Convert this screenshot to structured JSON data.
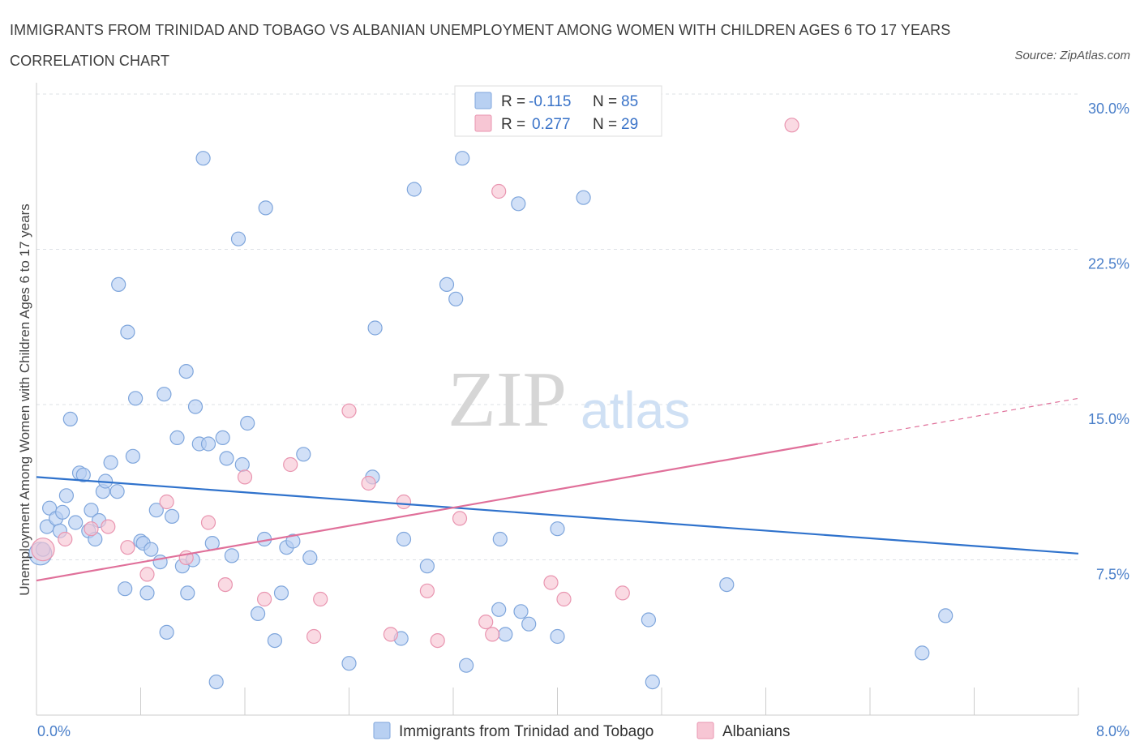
{
  "title": "IMMIGRANTS FROM TRINIDAD AND TOBAGO VS ALBANIAN UNEMPLOYMENT AMONG WOMEN WITH CHILDREN AGES 6 TO 17 YEARS CORRELATION CHART",
  "source": "Source: ZipAtlas.com",
  "watermark": {
    "zip": "ZIP",
    "atlas": "atlas"
  },
  "colors": {
    "blue_fill": "#b8d0f2",
    "blue_stroke": "#7fa6dc",
    "blue_line": "#2f72cc",
    "pink_fill": "#f7c6d4",
    "pink_stroke": "#e995b0",
    "pink_line": "#e0709a",
    "axis_label": "#4a7fc9",
    "grid": "#dde1e6"
  },
  "legend_top": {
    "rows": [
      {
        "r_label": "R =",
        "r_value": "-0.115",
        "n_label": "N =",
        "n_value": "85"
      },
      {
        "r_label": "R =",
        "r_value": "0.277",
        "n_label": "N =",
        "n_value": "29"
      }
    ]
  },
  "legend_bottom": [
    "Immigrants from Trinidad and Tobago",
    "Albanians"
  ],
  "chart_data": {
    "type": "scatter",
    "title": "IMMIGRANTS FROM TRINIDAD AND TOBAGO VS ALBANIAN UNEMPLOYMENT AMONG WOMEN WITH CHILDREN AGES 6 TO 17 YEARS CORRELATION CHART",
    "xlabel": "",
    "ylabel": "Unemployment Among Women with Children Ages 6 to 17 years",
    "xlim": [
      0,
      8
    ],
    "ylim": [
      0,
      30
    ],
    "x_ticks": [
      "0.0%",
      "8.0%"
    ],
    "y_ticks": [
      {
        "value": 7.5,
        "label": "7.5%"
      },
      {
        "value": 15,
        "label": "15.0%"
      },
      {
        "value": 22.5,
        "label": "22.5%"
      },
      {
        "value": 30,
        "label": "30.0%"
      }
    ],
    "grid": true,
    "legend_position": "top-center",
    "series": [
      {
        "name": "Immigrants from Trinidad and Tobago",
        "color": "#b8d0f2",
        "trend": {
          "x": [
            0,
            8
          ],
          "y": [
            11.5,
            7.8
          ],
          "dashed_from": null
        },
        "points": [
          [
            0.03,
            7.8
          ],
          [
            0.05,
            8.0
          ],
          [
            0.08,
            9.1
          ],
          [
            0.1,
            10.0
          ],
          [
            0.15,
            9.5
          ],
          [
            0.18,
            8.9
          ],
          [
            0.2,
            9.8
          ],
          [
            0.23,
            10.6
          ],
          [
            0.26,
            14.3
          ],
          [
            0.3,
            9.3
          ],
          [
            0.33,
            11.7
          ],
          [
            0.36,
            11.6
          ],
          [
            0.4,
            8.9
          ],
          [
            0.42,
            9.9
          ],
          [
            0.45,
            8.5
          ],
          [
            0.48,
            9.4
          ],
          [
            0.51,
            10.8
          ],
          [
            0.53,
            11.3
          ],
          [
            0.57,
            12.2
          ],
          [
            0.62,
            10.8
          ],
          [
            0.63,
            20.8
          ],
          [
            0.68,
            6.1
          ],
          [
            0.7,
            18.5
          ],
          [
            0.74,
            12.5
          ],
          [
            0.76,
            15.3
          ],
          [
            0.8,
            8.4
          ],
          [
            0.82,
            8.3
          ],
          [
            0.85,
            5.9
          ],
          [
            0.88,
            8.0
          ],
          [
            0.92,
            9.9
          ],
          [
            0.95,
            7.4
          ],
          [
            0.98,
            15.5
          ],
          [
            1.0,
            4.0
          ],
          [
            1.04,
            9.6
          ],
          [
            1.08,
            13.4
          ],
          [
            1.12,
            7.2
          ],
          [
            1.15,
            16.6
          ],
          [
            1.16,
            5.9
          ],
          [
            1.2,
            7.5
          ],
          [
            1.22,
            14.9
          ],
          [
            1.25,
            13.1
          ],
          [
            1.28,
            26.9
          ],
          [
            1.32,
            13.1
          ],
          [
            1.35,
            8.3
          ],
          [
            1.38,
            1.6
          ],
          [
            1.43,
            13.4
          ],
          [
            1.46,
            12.4
          ],
          [
            1.5,
            7.7
          ],
          [
            1.55,
            23.0
          ],
          [
            1.58,
            12.1
          ],
          [
            1.62,
            14.1
          ],
          [
            1.7,
            4.9
          ],
          [
            1.75,
            8.5
          ],
          [
            1.76,
            24.5
          ],
          [
            1.83,
            3.6
          ],
          [
            1.88,
            5.9
          ],
          [
            1.92,
            8.1
          ],
          [
            1.97,
            8.4
          ],
          [
            2.05,
            12.6
          ],
          [
            2.1,
            7.6
          ],
          [
            2.4,
            2.5
          ],
          [
            2.58,
            11.5
          ],
          [
            2.6,
            18.7
          ],
          [
            2.8,
            3.7
          ],
          [
            2.82,
            8.5
          ],
          [
            2.9,
            25.4
          ],
          [
            3.0,
            7.2
          ],
          [
            3.15,
            20.8
          ],
          [
            3.22,
            20.1
          ],
          [
            3.27,
            26.9
          ],
          [
            3.3,
            2.4
          ],
          [
            3.55,
            5.1
          ],
          [
            3.56,
            8.5
          ],
          [
            3.6,
            3.9
          ],
          [
            3.7,
            24.7
          ],
          [
            3.72,
            5.0
          ],
          [
            3.78,
            4.4
          ],
          [
            4.0,
            9.0
          ],
          [
            4.0,
            3.8
          ],
          [
            4.2,
            25.0
          ],
          [
            4.7,
            4.6
          ],
          [
            4.73,
            1.6
          ],
          [
            5.3,
            6.3
          ],
          [
            6.8,
            3.0
          ],
          [
            6.98,
            4.8
          ]
        ]
      },
      {
        "name": "Albanians",
        "color": "#f7c6d4",
        "trend": {
          "x": [
            0,
            8
          ],
          "y": [
            6.5,
            15.3
          ],
          "dashed_from": 6.0
        },
        "points": [
          [
            0.05,
            8.0
          ],
          [
            0.22,
            8.5
          ],
          [
            0.42,
            9.0
          ],
          [
            0.55,
            9.1
          ],
          [
            0.7,
            8.1
          ],
          [
            0.85,
            6.8
          ],
          [
            1.0,
            10.3
          ],
          [
            1.15,
            7.6
          ],
          [
            1.32,
            9.3
          ],
          [
            1.45,
            6.3
          ],
          [
            1.6,
            11.5
          ],
          [
            1.75,
            5.6
          ],
          [
            1.95,
            12.1
          ],
          [
            2.13,
            3.8
          ],
          [
            2.18,
            5.6
          ],
          [
            2.4,
            14.7
          ],
          [
            2.55,
            11.2
          ],
          [
            2.72,
            3.9
          ],
          [
            2.82,
            10.3
          ],
          [
            3.0,
            6.0
          ],
          [
            3.08,
            3.6
          ],
          [
            3.25,
            9.5
          ],
          [
            3.45,
            4.5
          ],
          [
            3.5,
            3.9
          ],
          [
            3.55,
            25.3
          ],
          [
            3.95,
            6.4
          ],
          [
            4.05,
            5.6
          ],
          [
            4.5,
            5.9
          ],
          [
            5.8,
            28.5
          ]
        ]
      }
    ]
  }
}
